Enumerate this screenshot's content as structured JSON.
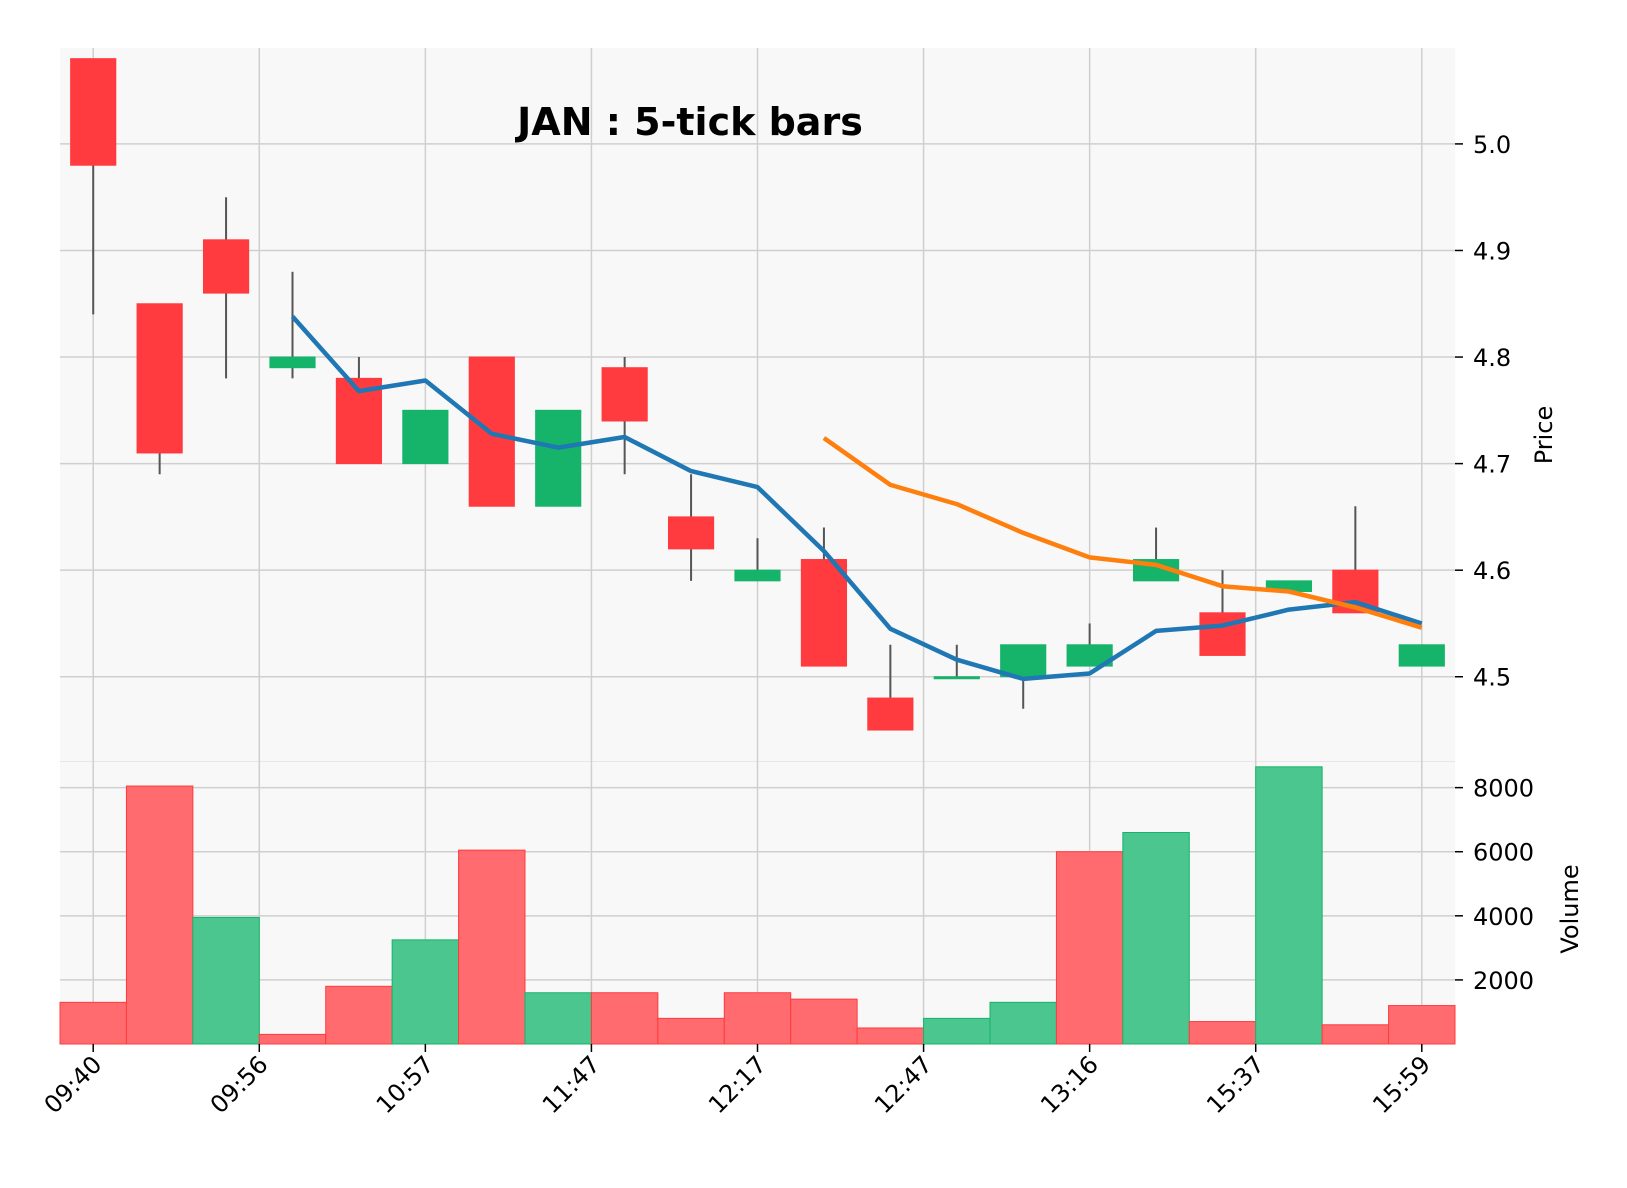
{
  "chart_data": {
    "type": "candlestick",
    "title": "JAN : 5-tick bars",
    "price_axis_label": "Price",
    "volume_axis_label": "Volume",
    "price_ticks": [
      "4.5",
      "4.6",
      "4.7",
      "4.8",
      "4.9",
      "5.0"
    ],
    "volume_ticks": [
      "2000",
      "4000",
      "6000",
      "8000"
    ],
    "x_tick_labels": [
      "09:40",
      "09:56",
      "10:57",
      "11:47",
      "12:17",
      "12:47",
      "13:16",
      "15:37",
      "15:59"
    ],
    "x_tick_indices": [
      0,
      2.5,
      5,
      7.5,
      10,
      12.5,
      15,
      17.5,
      20
    ],
    "price_ylim": [
      4.42,
      5.09
    ],
    "volume_ylim": [
      0,
      8800
    ],
    "colors": {
      "up": "#16b46b",
      "down": "#ff3b3f",
      "up_volume": "#4bc68e",
      "down_volume": "#ff6b6e",
      "wick": "#555555",
      "ma_short": "#1f77b4",
      "ma_long": "#ff7f0e",
      "grid": "#cfcfcf",
      "panel_bg": "#f8f8f8"
    },
    "candles": [
      {
        "open": 5.08,
        "high": 5.08,
        "low": 4.84,
        "close": 4.98
      },
      {
        "open": 4.85,
        "high": 4.85,
        "low": 4.69,
        "close": 4.71
      },
      {
        "open": 4.91,
        "high": 4.95,
        "low": 4.78,
        "close": 4.86
      },
      {
        "open": 4.79,
        "high": 4.88,
        "low": 4.78,
        "close": 4.8
      },
      {
        "open": 4.78,
        "high": 4.8,
        "low": 4.7,
        "close": 4.7
      },
      {
        "open": 4.7,
        "high": 4.75,
        "low": 4.7,
        "close": 4.75
      },
      {
        "open": 4.8,
        "high": 4.8,
        "low": 4.66,
        "close": 4.66
      },
      {
        "open": 4.66,
        "high": 4.75,
        "low": 4.66,
        "close": 4.75
      },
      {
        "open": 4.79,
        "high": 4.8,
        "low": 4.69,
        "close": 4.74
      },
      {
        "open": 4.65,
        "high": 4.69,
        "low": 4.59,
        "close": 4.62
      },
      {
        "open": 4.59,
        "high": 4.63,
        "low": 4.59,
        "close": 4.6
      },
      {
        "open": 4.61,
        "high": 4.64,
        "low": 4.51,
        "close": 4.51
      },
      {
        "open": 4.48,
        "high": 4.53,
        "low": 4.45,
        "close": 4.45
      },
      {
        "open": 4.5,
        "high": 4.53,
        "low": 4.5,
        "close": 4.5
      },
      {
        "open": 4.5,
        "high": 4.53,
        "low": 4.47,
        "close": 4.53
      },
      {
        "open": 4.51,
        "high": 4.55,
        "low": 4.51,
        "close": 4.53
      },
      {
        "open": 4.59,
        "high": 4.64,
        "low": 4.59,
        "close": 4.61
      },
      {
        "open": 4.56,
        "high": 4.6,
        "low": 4.52,
        "close": 4.52
      },
      {
        "open": 4.58,
        "high": 4.59,
        "low": 4.58,
        "close": 4.59
      },
      {
        "open": 4.6,
        "high": 4.66,
        "low": 4.56,
        "close": 4.56
      },
      {
        "open": 4.51,
        "high": 4.53,
        "low": 4.51,
        "close": 4.53
      }
    ],
    "volume": [
      1300,
      8050,
      3950,
      300,
      1800,
      3250,
      6050,
      1600,
      1600,
      800,
      1600,
      1400,
      500,
      800,
      1300,
      6000,
      6600,
      700,
      8650,
      600,
      1200
    ],
    "volume_up": [
      false,
      false,
      true,
      false,
      false,
      true,
      false,
      true,
      false,
      false,
      false,
      false,
      false,
      true,
      true,
      false,
      true,
      false,
      true,
      false,
      false
    ],
    "ma_short": {
      "name": "MA",
      "start_index": 3,
      "values": [
        4.838,
        4.768,
        4.778,
        4.728,
        4.715,
        4.725,
        4.693,
        4.678,
        4.618,
        4.545,
        4.516,
        4.498,
        4.503,
        4.543,
        4.548,
        4.563,
        4.57,
        4.55
      ]
    },
    "ma_long": {
      "name": "MA",
      "start_index": 11,
      "values": [
        4.724,
        4.68,
        4.662,
        4.635,
        4.612,
        4.605,
        4.585,
        4.58,
        4.565,
        4.546
      ]
    }
  }
}
